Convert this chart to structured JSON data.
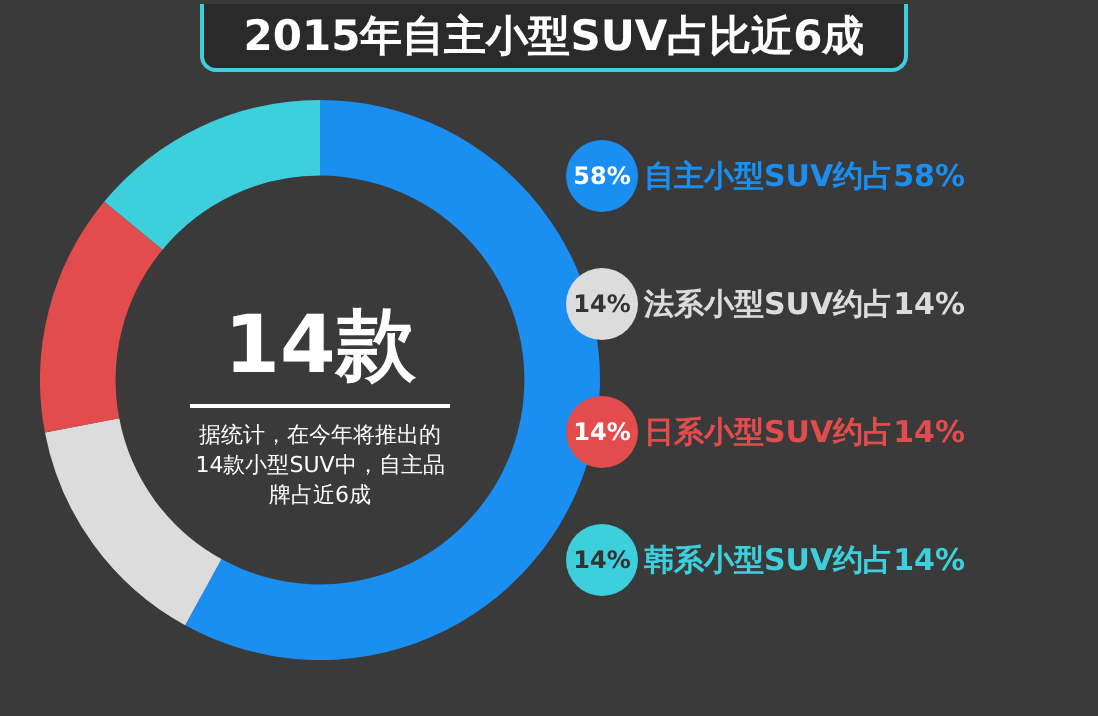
{
  "chart_data": {
    "type": "donut",
    "title": "2015年自主小型SUV占比近6成",
    "categories": [
      "自主小型SUV约占58%",
      "法系小型SUV约占14%",
      "日系小型SUV约占14%",
      "韩系小型SUV约占14%"
    ],
    "values": [
      58,
      14,
      14,
      14
    ],
    "colors": [
      "#1b8ef2",
      "#dcdcdc",
      "#e24c4c",
      "#3dcfdc"
    ],
    "value_labels": [
      "58%",
      "14%",
      "14%",
      "14%"
    ],
    "legend": "right",
    "annotations": [
      "14款",
      "据统计，在今年将推出的14款小型SUV中，自主品牌占近6成"
    ]
  }
}
